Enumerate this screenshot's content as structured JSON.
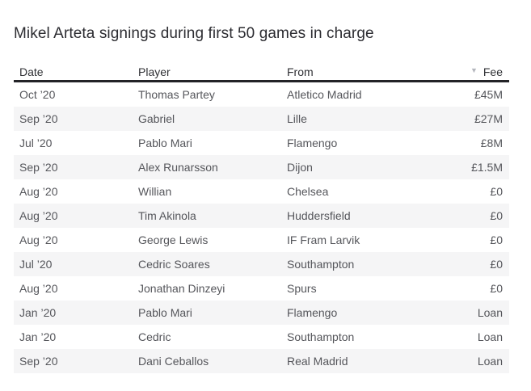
{
  "chart_data": {
    "type": "table",
    "title": "Mikel Arteta signings during first 50 games in charge",
    "columns": [
      "Date",
      "Player",
      "From",
      "Fee"
    ],
    "rows": [
      [
        "Oct ’20",
        "Thomas Partey",
        "Atletico Madrid",
        "£45M"
      ],
      [
        "Sep ’20",
        "Gabriel",
        "Lille",
        "£27M"
      ],
      [
        "Jul ’20",
        "Pablo Mari",
        "Flamengo",
        "£8M"
      ],
      [
        "Sep ’20",
        "Alex Runarsson",
        "Dijon",
        "£1.5M"
      ],
      [
        "Aug ’20",
        "Willian",
        "Chelsea",
        "£0"
      ],
      [
        "Aug ’20",
        "Tim Akinola",
        "Huddersfield",
        "£0"
      ],
      [
        "Aug ’20",
        "George Lewis",
        "IF Fram Larvik",
        "£0"
      ],
      [
        "Jul ’20",
        "Cedric Soares",
        "Southampton",
        "£0"
      ],
      [
        "Aug ’20",
        "Jonathan Dinzeyi",
        "Spurs",
        "£0"
      ],
      [
        "Jan ’20",
        "Pablo Mari",
        "Flamengo",
        "Loan"
      ],
      [
        "Jan ’20",
        "Cedric",
        "Southampton",
        "Loan"
      ],
      [
        "Sep ’20",
        "Dani Ceballos",
        "Real Madrid",
        "Loan"
      ]
    ],
    "sort": {
      "column": "Fee",
      "direction": "desc",
      "icon": "▼"
    },
    "layout": {
      "zebra_stripes": true,
      "grid": "off",
      "fee_align": "right"
    }
  },
  "colors": {
    "title_text": "#2c2c31",
    "header_text": "#2f3034",
    "body_text": "#55565b",
    "stripe": "#f5f5f6",
    "header_rule": "#232327",
    "sort_icon": "#b4b6bd",
    "page_bg": "#ffffff"
  }
}
